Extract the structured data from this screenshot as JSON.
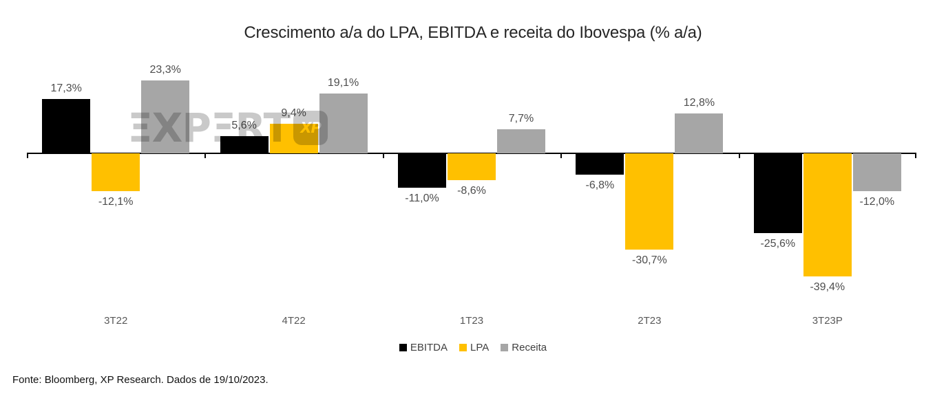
{
  "title": "Crescimento a/a do LPA, EBITDA e receita do Ibovespa (% a/a)",
  "footer": "Fonte: Bloomberg, XP Research. Dados de 19/10/2023.",
  "watermark": {
    "text": "EXPERT",
    "logo_text": "XP"
  },
  "chart_data": {
    "type": "bar",
    "title": "Crescimento a/a do LPA, EBITDA e receita do Ibovespa (% a/a)",
    "categories": [
      "3T22",
      "4T22",
      "1T23",
      "2T23",
      "3T23P"
    ],
    "series": [
      {
        "name": "EBITDA",
        "color": "#000000",
        "values": [
          17.3,
          5.6,
          -11.0,
          -6.8,
          -25.6
        ]
      },
      {
        "name": "LPA",
        "color": "#FFC000",
        "values": [
          -12.1,
          9.4,
          -8.6,
          -30.7,
          -39.4
        ]
      },
      {
        "name": "Receita",
        "color": "#A6A6A6",
        "values": [
          23.3,
          19.1,
          7.7,
          12.8,
          -12.0
        ]
      }
    ],
    "unit": "%",
    "decimal_separator": ",",
    "value_labels": "all bars, outside end",
    "ylim": [
      -45,
      28
    ],
    "grid": false,
    "legend_position": "bottom",
    "axis_color": "#000000"
  }
}
